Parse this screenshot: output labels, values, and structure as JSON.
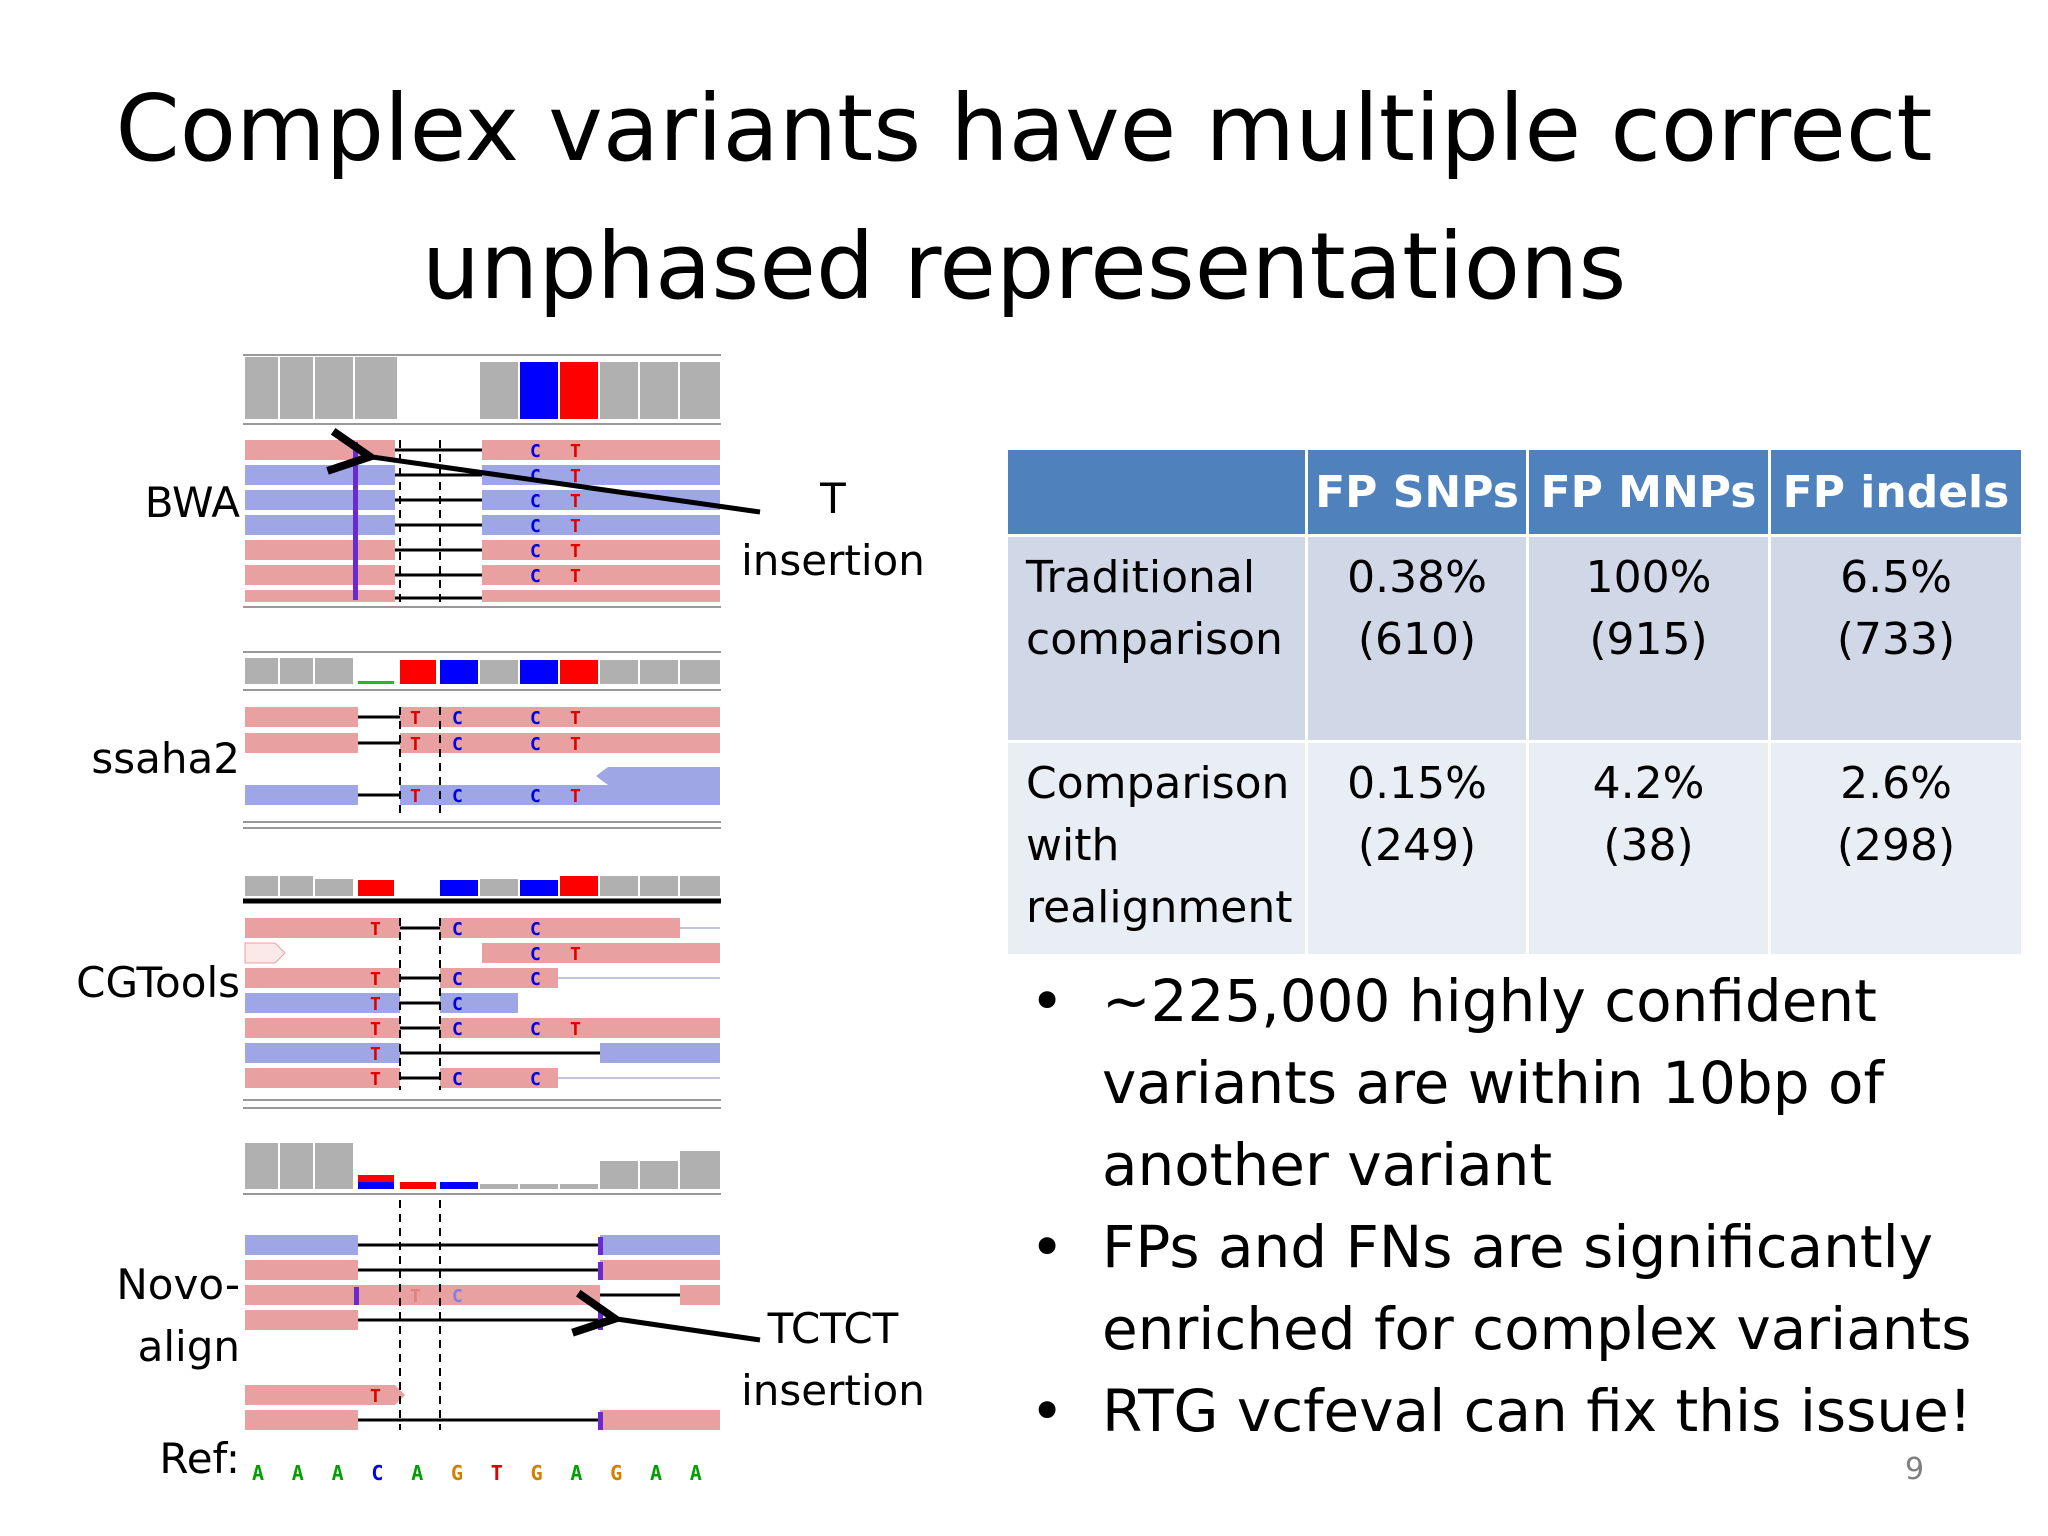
{
  "title": "Complex variants have multiple correct unphased representations",
  "aligners": {
    "bwa": "BWA",
    "ssaha2": "ssaha2",
    "cgtools": "CGTools",
    "novo_line1": "Novo-",
    "novo_line2": "align",
    "ref": "Ref:"
  },
  "callouts": {
    "t_insertion_line1": "T",
    "t_insertion_line2": "insertion",
    "tctct_insertion_line1": "TCTCT",
    "tctct_insertion_line2": "insertion"
  },
  "reference_sequence": [
    "A",
    "A",
    "A",
    "C",
    "A",
    "G",
    "T",
    "G",
    "A",
    "G",
    "A",
    "A"
  ],
  "base_colors": {
    "A": "#00a000",
    "C": "#0000e0",
    "G": "#d08000",
    "T": "#e00000"
  },
  "read_colors": {
    "forward": "#e8a0a0",
    "reverse": "#9ea6e6",
    "coverage": "#b0b0b0"
  },
  "table": {
    "headers": [
      "",
      "FP SNPs",
      "FP MNPs",
      "FP indels"
    ],
    "rows": [
      {
        "label_lines": [
          "Traditional",
          "comparison"
        ],
        "cells": [
          [
            "0.38%",
            "(610)"
          ],
          [
            "100%",
            "(915)"
          ],
          [
            "6.5%",
            "(733)"
          ]
        ]
      },
      {
        "label_lines": [
          "Comparison",
          "with",
          "realignment"
        ],
        "cells": [
          [
            "0.15%",
            "(249)"
          ],
          [
            "4.2%",
            "(38)"
          ],
          [
            "2.6%",
            "(298)"
          ]
        ]
      }
    ],
    "header_color": "#4f81bd"
  },
  "bullets": [
    {
      "lines": [
        "~225,000 highly confident",
        "variants are within 10bp of",
        "another variant"
      ]
    },
    {
      "lines": [
        "FPs and FNs are significantly",
        "enriched for complex variants"
      ]
    },
    {
      "lines": [
        "RTG vcfeval can fix this issue!"
      ]
    }
  ],
  "bullet_symbol": "•",
  "page_number": "9"
}
